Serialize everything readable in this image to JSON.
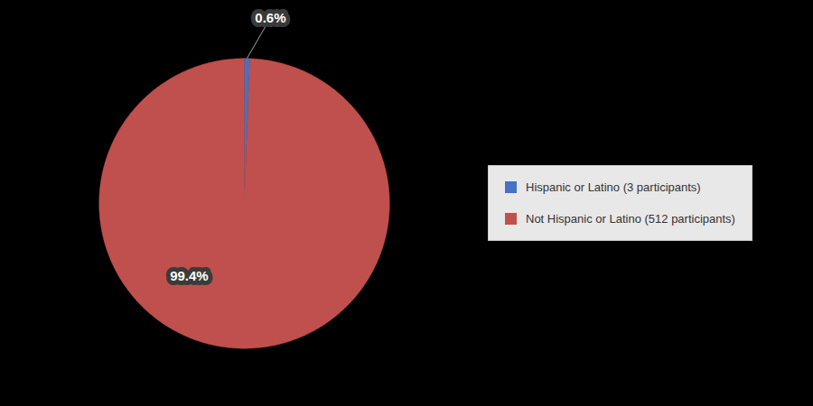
{
  "chart_data": {
    "type": "pie",
    "categories": [
      "Hispanic or Latino (3 participants)",
      "Not Hispanic or Latino (512 participants)"
    ],
    "values": [
      0.6,
      99.4
    ],
    "value_labels": [
      "0.6%",
      "99.4%"
    ],
    "colors": [
      "#4472C4",
      "#C0504D"
    ],
    "data_labels": true,
    "legend": "right"
  }
}
